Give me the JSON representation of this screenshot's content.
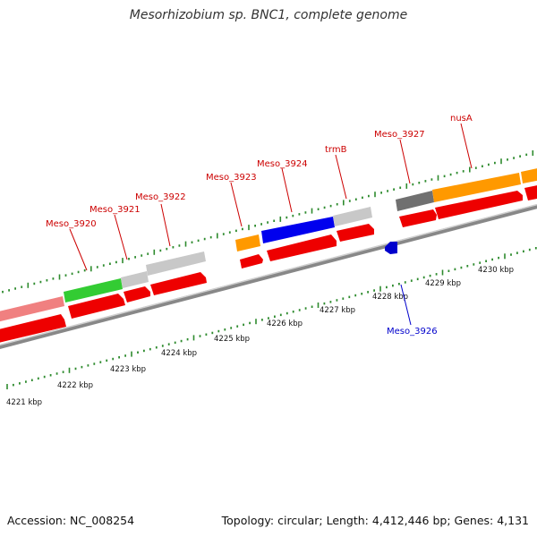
{
  "title": "Mesorhizobium sp. BNC1, complete genome",
  "accession_label": "Accession: NC_008254",
  "summary_label": "Topology: circular; Length: 4,412,446 bp; Genes: 4,131",
  "colors": {
    "backbone": "#909090",
    "tick_top": "#2e8b2e",
    "tick_bottom": "#2e8b2e",
    "gene_label": "#cc0000",
    "gene_label_blue": "#0000cc",
    "cds_red": "#ee0000",
    "gene_grey": "#c8c8c8",
    "gene_darkgrey": "#707070",
    "gene_pink": "#f08080",
    "gene_green": "#33cc33",
    "gene_orange": "#ff9900",
    "gene_blue": "#0000ee"
  },
  "kbp_labels": [
    "4221 kbp",
    "4222 kbp",
    "4223 kbp",
    "4224 kbp",
    "4225 kbp",
    "4226 kbp",
    "4227 kbp",
    "4228 kbp",
    "4229 kbp",
    "4230 kbp"
  ],
  "gene_labels": [
    {
      "text": "Meso_3920",
      "color": "red"
    },
    {
      "text": "Meso_3921",
      "color": "red"
    },
    {
      "text": "Meso_3922",
      "color": "red"
    },
    {
      "text": "Meso_3923",
      "color": "red"
    },
    {
      "text": "Meso_3924",
      "color": "red"
    },
    {
      "text": "trmB",
      "color": "red"
    },
    {
      "text": "Meso_3927",
      "color": "red"
    },
    {
      "text": "nusA",
      "color": "red"
    },
    {
      "text": "Meso_3926",
      "color": "blue"
    }
  ]
}
